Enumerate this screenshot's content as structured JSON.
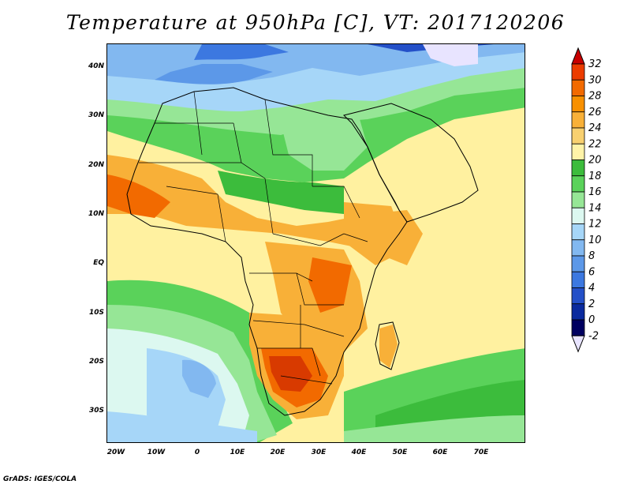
{
  "title": "Temperature at 950hPa [C], VT: 2017120206",
  "credit": "GrADS: IGES/COLA",
  "lat_labels": [
    "40N",
    "30N",
    "20N",
    "10N",
    "EQ",
    "10S",
    "20S",
    "30S"
  ],
  "lon_labels": [
    "20W",
    "10W",
    "0",
    "10E",
    "20E",
    "30E",
    "40E",
    "50E",
    "60E",
    "70E"
  ],
  "colorbar": {
    "labels": [
      "32",
      "30",
      "28",
      "26",
      "24",
      "22",
      "20",
      "18",
      "16",
      "14",
      "12",
      "10",
      "8",
      "6",
      "4",
      "2",
      "0",
      "-2"
    ],
    "colors": [
      "#d80000",
      "#ec3c00",
      "#f26a00",
      "#f89000",
      "#f8b038",
      "#f8d070",
      "#fff3a8",
      "#3cbc3c",
      "#5ad25a",
      "#96e696",
      "#dcf8f0",
      "#a6d6f8",
      "#82b8f0",
      "#5c98e8",
      "#3c78e0",
      "#2450c8",
      "#0a2a9e",
      "#000060",
      "#e8e4ff"
    ],
    "under_color": "#e8e4ff",
    "over_color": "#c80000"
  },
  "map_colors": {
    "ocean_warm": "#fff1a0",
    "tropical_warm": "#f8d070",
    "hot": "#f8b038",
    "very_hot": "#f26a00",
    "hottest": "#d83a00",
    "green_18": "#3cbc3c",
    "green_16": "#5ad25a",
    "green_14": "#96e696",
    "cyan_12": "#dcf8f0",
    "blue_10": "#a6d6f8",
    "blue_8": "#82b8f0",
    "blue_6": "#5c98e8",
    "blue_4": "#3c78e0",
    "blue_2": "#2450c8",
    "below": "#e8e4ff",
    "boundary": "#000000"
  }
}
